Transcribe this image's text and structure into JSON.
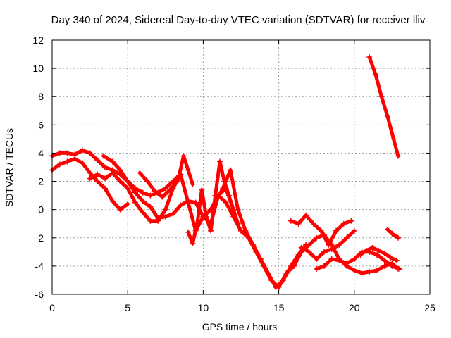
{
  "chart_data": {
    "type": "scatter",
    "title": "Day 340 of 2024, Sidereal Day-to-day VTEC variation (SDTVAR) for receiver lliv",
    "xlabel": "GPS time / hours",
    "ylabel": "SDTVAR / TECUs",
    "xlim": [
      0,
      25
    ],
    "ylim": [
      -6,
      12
    ],
    "xticks": [
      0,
      5,
      10,
      15,
      20,
      25
    ],
    "yticks": [
      -6,
      -4,
      -2,
      0,
      2,
      4,
      6,
      8,
      10,
      12
    ],
    "grid": true,
    "marker": "+",
    "color": "#ff0000",
    "series": [
      {
        "x": [
          0,
          0.5,
          1,
          1.5,
          2,
          2.5,
          3,
          3.5,
          4,
          4.5,
          5,
          5.5,
          6,
          6.5,
          7,
          7.5,
          8,
          8.5,
          9,
          9.5,
          10,
          10.5,
          11,
          11.5,
          12,
          12.5,
          13,
          13.5,
          14,
          14.5,
          15,
          15.5,
          16,
          16.5,
          17,
          17.5,
          18,
          18.5,
          19,
          19.5,
          20,
          20.5,
          21,
          21.5,
          22,
          22.5,
          22.9
        ],
        "y": [
          3.8,
          4.0,
          4.0,
          3.9,
          4.2,
          4.0,
          3.5,
          3.0,
          2.8,
          2.5,
          2.0,
          1.2,
          0.6,
          0.2,
          -0.6,
          -0.5,
          -0.3,
          0.3,
          0.6,
          0.5,
          -0.5,
          -1.0,
          1.0,
          0.5,
          -0.5,
          -1.5,
          -2.0,
          -3.0,
          -4.0,
          -5.0,
          -5.5,
          -4.5,
          -4.0,
          -3.0,
          -2.5,
          -2.0,
          -1.8,
          -2.5,
          -3.5,
          -4.0,
          -4.3,
          -4.5,
          -4.4,
          -4.3,
          -4.0,
          -3.8,
          -4.2
        ]
      },
      {
        "x": [
          0,
          0.5,
          1,
          1.5,
          2,
          2.5,
          3,
          3.5,
          4,
          4.5,
          5
        ],
        "y": [
          2.8,
          3.2,
          3.4,
          3.6,
          3.3,
          2.6,
          2.0,
          1.5,
          0.6,
          0.0,
          0.4
        ]
      },
      {
        "x": [
          2.5,
          3,
          3.5,
          4,
          4.5,
          5,
          5.5,
          6,
          6.5,
          7,
          7.5,
          8,
          8.5,
          9,
          9.5,
          10,
          10.5,
          11,
          11.5,
          12
        ],
        "y": [
          2.2,
          2.5,
          2.2,
          2.6,
          2.0,
          1.5,
          0.5,
          -0.2,
          -0.8,
          -0.8,
          0.0,
          1.5,
          2.5,
          0.5,
          -1.5,
          -0.5,
          0.0,
          1.0,
          1.5,
          0.0
        ]
      },
      {
        "x": [
          3.4,
          4,
          4.5,
          5,
          5.5,
          6,
          6.5,
          7,
          7.5,
          8,
          8.4,
          8.7,
          9,
          9.3
        ],
        "y": [
          3.8,
          3.4,
          2.8,
          2.0,
          1.5,
          1.2,
          1.0,
          1.2,
          1.5,
          2.0,
          2.4,
          3.8,
          2.8,
          1.8
        ]
      },
      {
        "x": [
          5.8,
          6.3,
          6.8,
          7.3,
          7.8,
          8.3
        ],
        "y": [
          2.6,
          2.0,
          1.3,
          0.9,
          1.4,
          2.0
        ]
      },
      {
        "x": [
          9.0,
          9.3,
          9.6,
          9.9,
          10.2,
          10.5,
          10.8,
          11.1,
          11.4,
          11.7,
          12.0,
          12.3
        ],
        "y": [
          -1.6,
          -2.4,
          -1.0,
          1.4,
          -0.5,
          -1.5,
          1.0,
          3.4,
          2.0,
          1.0,
          0.0,
          -1.0
        ]
      },
      {
        "x": [
          10.8,
          11.3,
          11.8,
          12.3,
          12.8,
          13.3,
          13.8,
          14.3,
          14.8,
          15.3,
          15.8,
          16.3,
          16.8
        ],
        "y": [
          0.5,
          1.5,
          2.8,
          0.0,
          -1.5,
          -2.5,
          -3.5,
          -4.5,
          -5.5,
          -5.0,
          -4.0,
          -3.2,
          -2.5
        ]
      },
      {
        "x": [
          15.8,
          16.3,
          16.8,
          17.3,
          17.8,
          18.3,
          18.8,
          19.3,
          19.8
        ],
        "y": [
          -0.8,
          -1.0,
          -0.4,
          -1.0,
          -1.5,
          -2.5,
          -1.5,
          -1.0,
          -0.8
        ]
      },
      {
        "x": [
          16.5,
          17.0,
          17.5,
          18.0,
          18.5,
          19.0,
          19.5,
          20.0
        ],
        "y": [
          -2.7,
          -3.0,
          -3.5,
          -3.0,
          -2.8,
          -2.5,
          -2.0,
          -1.5
        ]
      },
      {
        "x": [
          17.5,
          18.0,
          18.5,
          19.0,
          19.5,
          20.0,
          20.5,
          21.0,
          21.5,
          22.0,
          22.5,
          23.0
        ],
        "y": [
          -4.2,
          -4.0,
          -3.5,
          -3.6,
          -3.8,
          -3.5,
          -3.0,
          -3.0,
          -3.2,
          -3.6,
          -4.0,
          -4.2
        ]
      },
      {
        "x": [
          20.4,
          20.8,
          21.2,
          21.6,
          22.0,
          22.4,
          22.8
        ],
        "y": [
          -3.2,
          -2.9,
          -2.7,
          -2.9,
          -3.1,
          -3.4,
          -3.6
        ]
      },
      {
        "x": [
          21.0,
          21.4,
          21.8,
          22.2,
          22.6,
          22.9
        ],
        "y": [
          10.8,
          9.6,
          8.0,
          6.6,
          5.0,
          3.8
        ]
      },
      {
        "x": [
          22.2,
          22.5,
          22.9
        ],
        "y": [
          -1.4,
          -1.7,
          -2.0
        ]
      }
    ]
  }
}
